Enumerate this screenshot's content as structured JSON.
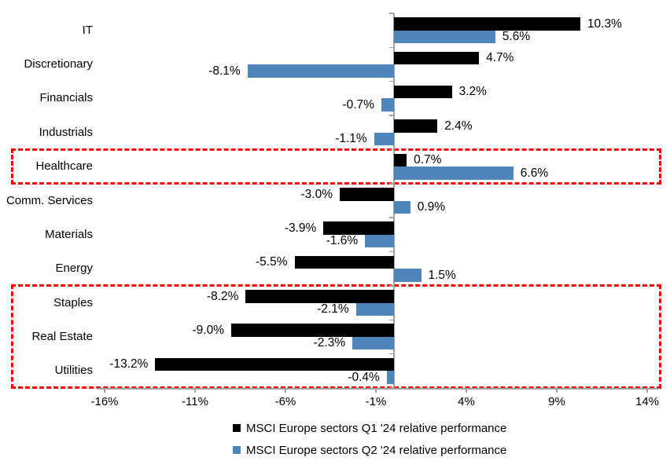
{
  "chart_data": {
    "type": "bar",
    "orientation": "horizontal",
    "title": "",
    "xlabel": "",
    "ylabel": "",
    "categories": [
      "IT",
      "Discretionary",
      "Financials",
      "Industrials",
      "Healthcare",
      "Comm. Services",
      "Materials",
      "Energy",
      "Staples",
      "Real Estate",
      "Utilities"
    ],
    "series": [
      {
        "name": "MSCI Europe sectors Q1 '24 relative performance",
        "color": "#000000",
        "values": [
          10.3,
          4.7,
          3.2,
          2.4,
          0.7,
          -3.0,
          -3.9,
          -5.5,
          -8.2,
          -9.0,
          -13.2
        ],
        "labels": [
          "10.3%",
          "4.7%",
          "3.2%",
          "2.4%",
          "0.7%",
          "-3.0%",
          "-3.9%",
          "-5.5%",
          "-8.2%",
          "-9.0%",
          "-13.2%"
        ]
      },
      {
        "name": "MSCI Europe sectors Q2 '24 relative performance",
        "color": "#4E86BC",
        "values": [
          5.6,
          -8.1,
          -0.7,
          -1.1,
          6.6,
          0.9,
          -1.6,
          1.5,
          -2.1,
          -2.3,
          -0.4
        ],
        "labels": [
          "5.6%",
          "-8.1%",
          "-0.7%",
          "-1.1%",
          "6.6%",
          "0.9%",
          "-1.6%",
          "1.5%",
          "-2.1%",
          "-2.3%",
          "-0.4%"
        ]
      }
    ],
    "x_ticks": [
      {
        "label": "-16%",
        "value": -16
      },
      {
        "label": "-11%",
        "value": -11
      },
      {
        "label": "-6%",
        "value": -6
      },
      {
        "label": "-1%",
        "value": -1
      },
      {
        "label": "4%",
        "value": 4
      },
      {
        "label": "9%",
        "value": 9
      },
      {
        "label": "14%",
        "value": 14
      }
    ],
    "xlim": [
      -17,
      14.7
    ],
    "grid": false,
    "legend_position": "bottom",
    "axis_color": "#a0a0a0",
    "highlight_color": "#ff0000",
    "highlights": [
      {
        "start": "Healthcare",
        "end": "Healthcare"
      },
      {
        "start": "Staples",
        "end": "Utilities"
      }
    ]
  }
}
